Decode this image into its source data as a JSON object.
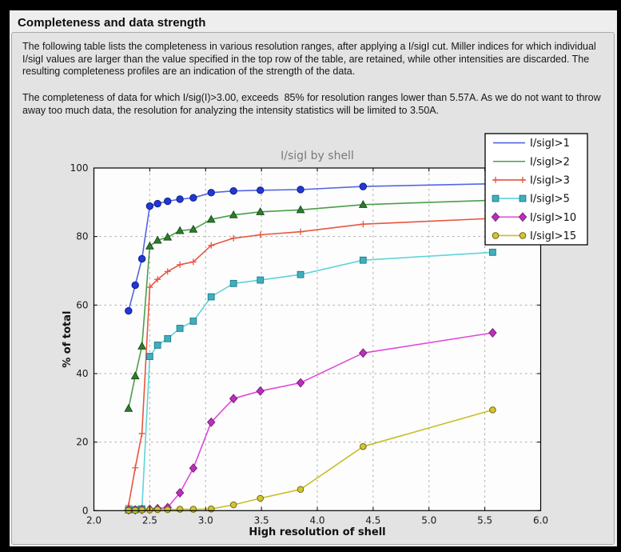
{
  "window": {
    "title": "Completeness and data strength"
  },
  "content": {
    "paragraph1": "The following table lists the completeness in various resolution ranges, after applying a I/sigI cut. Miller indices for which individual I/sigI values are larger than the value specified in the top row of the table, are retained, while other intensities are discarded. The resulting completeness profiles are an indication of the strength of the data.",
    "paragraph2": "The completeness of data for which I/sig(I)>3.00, exceeds  85% for resolution ranges lower than 5.57A. As we do not want to throw away too much data, the resolution for analyzing the intensity statistics will be limited to 3.50A."
  },
  "chart_data": {
    "type": "line",
    "title": "I/sigI by shell",
    "xlabel": "High resolution of shell",
    "ylabel": "% of total",
    "xlim": [
      2.0,
      6.0
    ],
    "ylim": [
      0,
      100
    ],
    "xticks": [
      2.0,
      2.5,
      3.0,
      3.5,
      4.0,
      4.5,
      5.0,
      5.5,
      6.0
    ],
    "yticks": [
      0,
      20,
      40,
      60,
      80,
      100
    ],
    "grid": true,
    "grid_color": "#ababab",
    "plot_bg": "#fdfdfd",
    "legend_position": "top-right",
    "x": [
      2.31,
      2.37,
      2.43,
      2.5,
      2.57,
      2.66,
      2.77,
      2.89,
      3.05,
      3.25,
      3.49,
      3.85,
      4.41,
      5.57
    ],
    "series": [
      {
        "name": "I/sigI>1",
        "marker": "circle",
        "legend_marker": false,
        "line_color": "#5565e2",
        "marker_fill": "#2138d6",
        "marker_edge": "#101f86",
        "values": [
          58.3,
          65.8,
          73.5,
          88.9,
          89.6,
          90.3,
          90.9,
          91.3,
          92.8,
          93.3,
          93.5,
          93.7,
          94.6,
          95.4
        ]
      },
      {
        "name": "I/sigI>2",
        "marker": "triangle",
        "legend_marker": false,
        "line_color": "#4a9e4a",
        "marker_fill": "#2e7d2e",
        "marker_edge": "#1c4f1c",
        "values": [
          29.8,
          39.3,
          48.0,
          77.2,
          78.9,
          79.8,
          81.7,
          82.1,
          85.0,
          86.3,
          87.2,
          87.8,
          89.3,
          90.6
        ]
      },
      {
        "name": "I/sigI>3",
        "marker": "plus",
        "legend_marker": true,
        "line_color": "#e8553f",
        "marker_fill": "none",
        "marker_edge": "#e8553f",
        "values": [
          1.5,
          12.5,
          22.5,
          65.2,
          67.5,
          69.8,
          71.8,
          72.6,
          77.4,
          79.5,
          80.5,
          81.4,
          83.6,
          85.3
        ]
      },
      {
        "name": "I/sigI>5",
        "marker": "square",
        "legend_marker": true,
        "line_color": "#5fd4d9",
        "marker_fill": "#42aebc",
        "marker_edge": "#23808f",
        "values": [
          0.2,
          0.3,
          0.5,
          45.0,
          48.3,
          50.2,
          53.2,
          55.3,
          62.4,
          66.3,
          67.3,
          68.9,
          73.1,
          75.4
        ]
      },
      {
        "name": "I/sigI>10",
        "marker": "diamond",
        "legend_marker": true,
        "line_color": "#df4ada",
        "marker_fill": "#bd2fbd",
        "marker_edge": "#75217a",
        "values": [
          0.2,
          0.2,
          0.3,
          0.4,
          0.6,
          0.9,
          5.2,
          12.4,
          25.8,
          32.7,
          34.9,
          37.3,
          46.0,
          51.9
        ]
      },
      {
        "name": "I/sigI>15",
        "marker": "circle-small",
        "legend_marker": true,
        "line_color": "#c6bf25",
        "marker_fill": "#d3c52e",
        "marker_edge": "#6f6a16",
        "values": [
          0.1,
          0.1,
          0.2,
          0.2,
          0.3,
          0.3,
          0.4,
          0.4,
          0.5,
          1.7,
          3.6,
          6.2,
          18.7,
          29.4
        ]
      }
    ]
  }
}
